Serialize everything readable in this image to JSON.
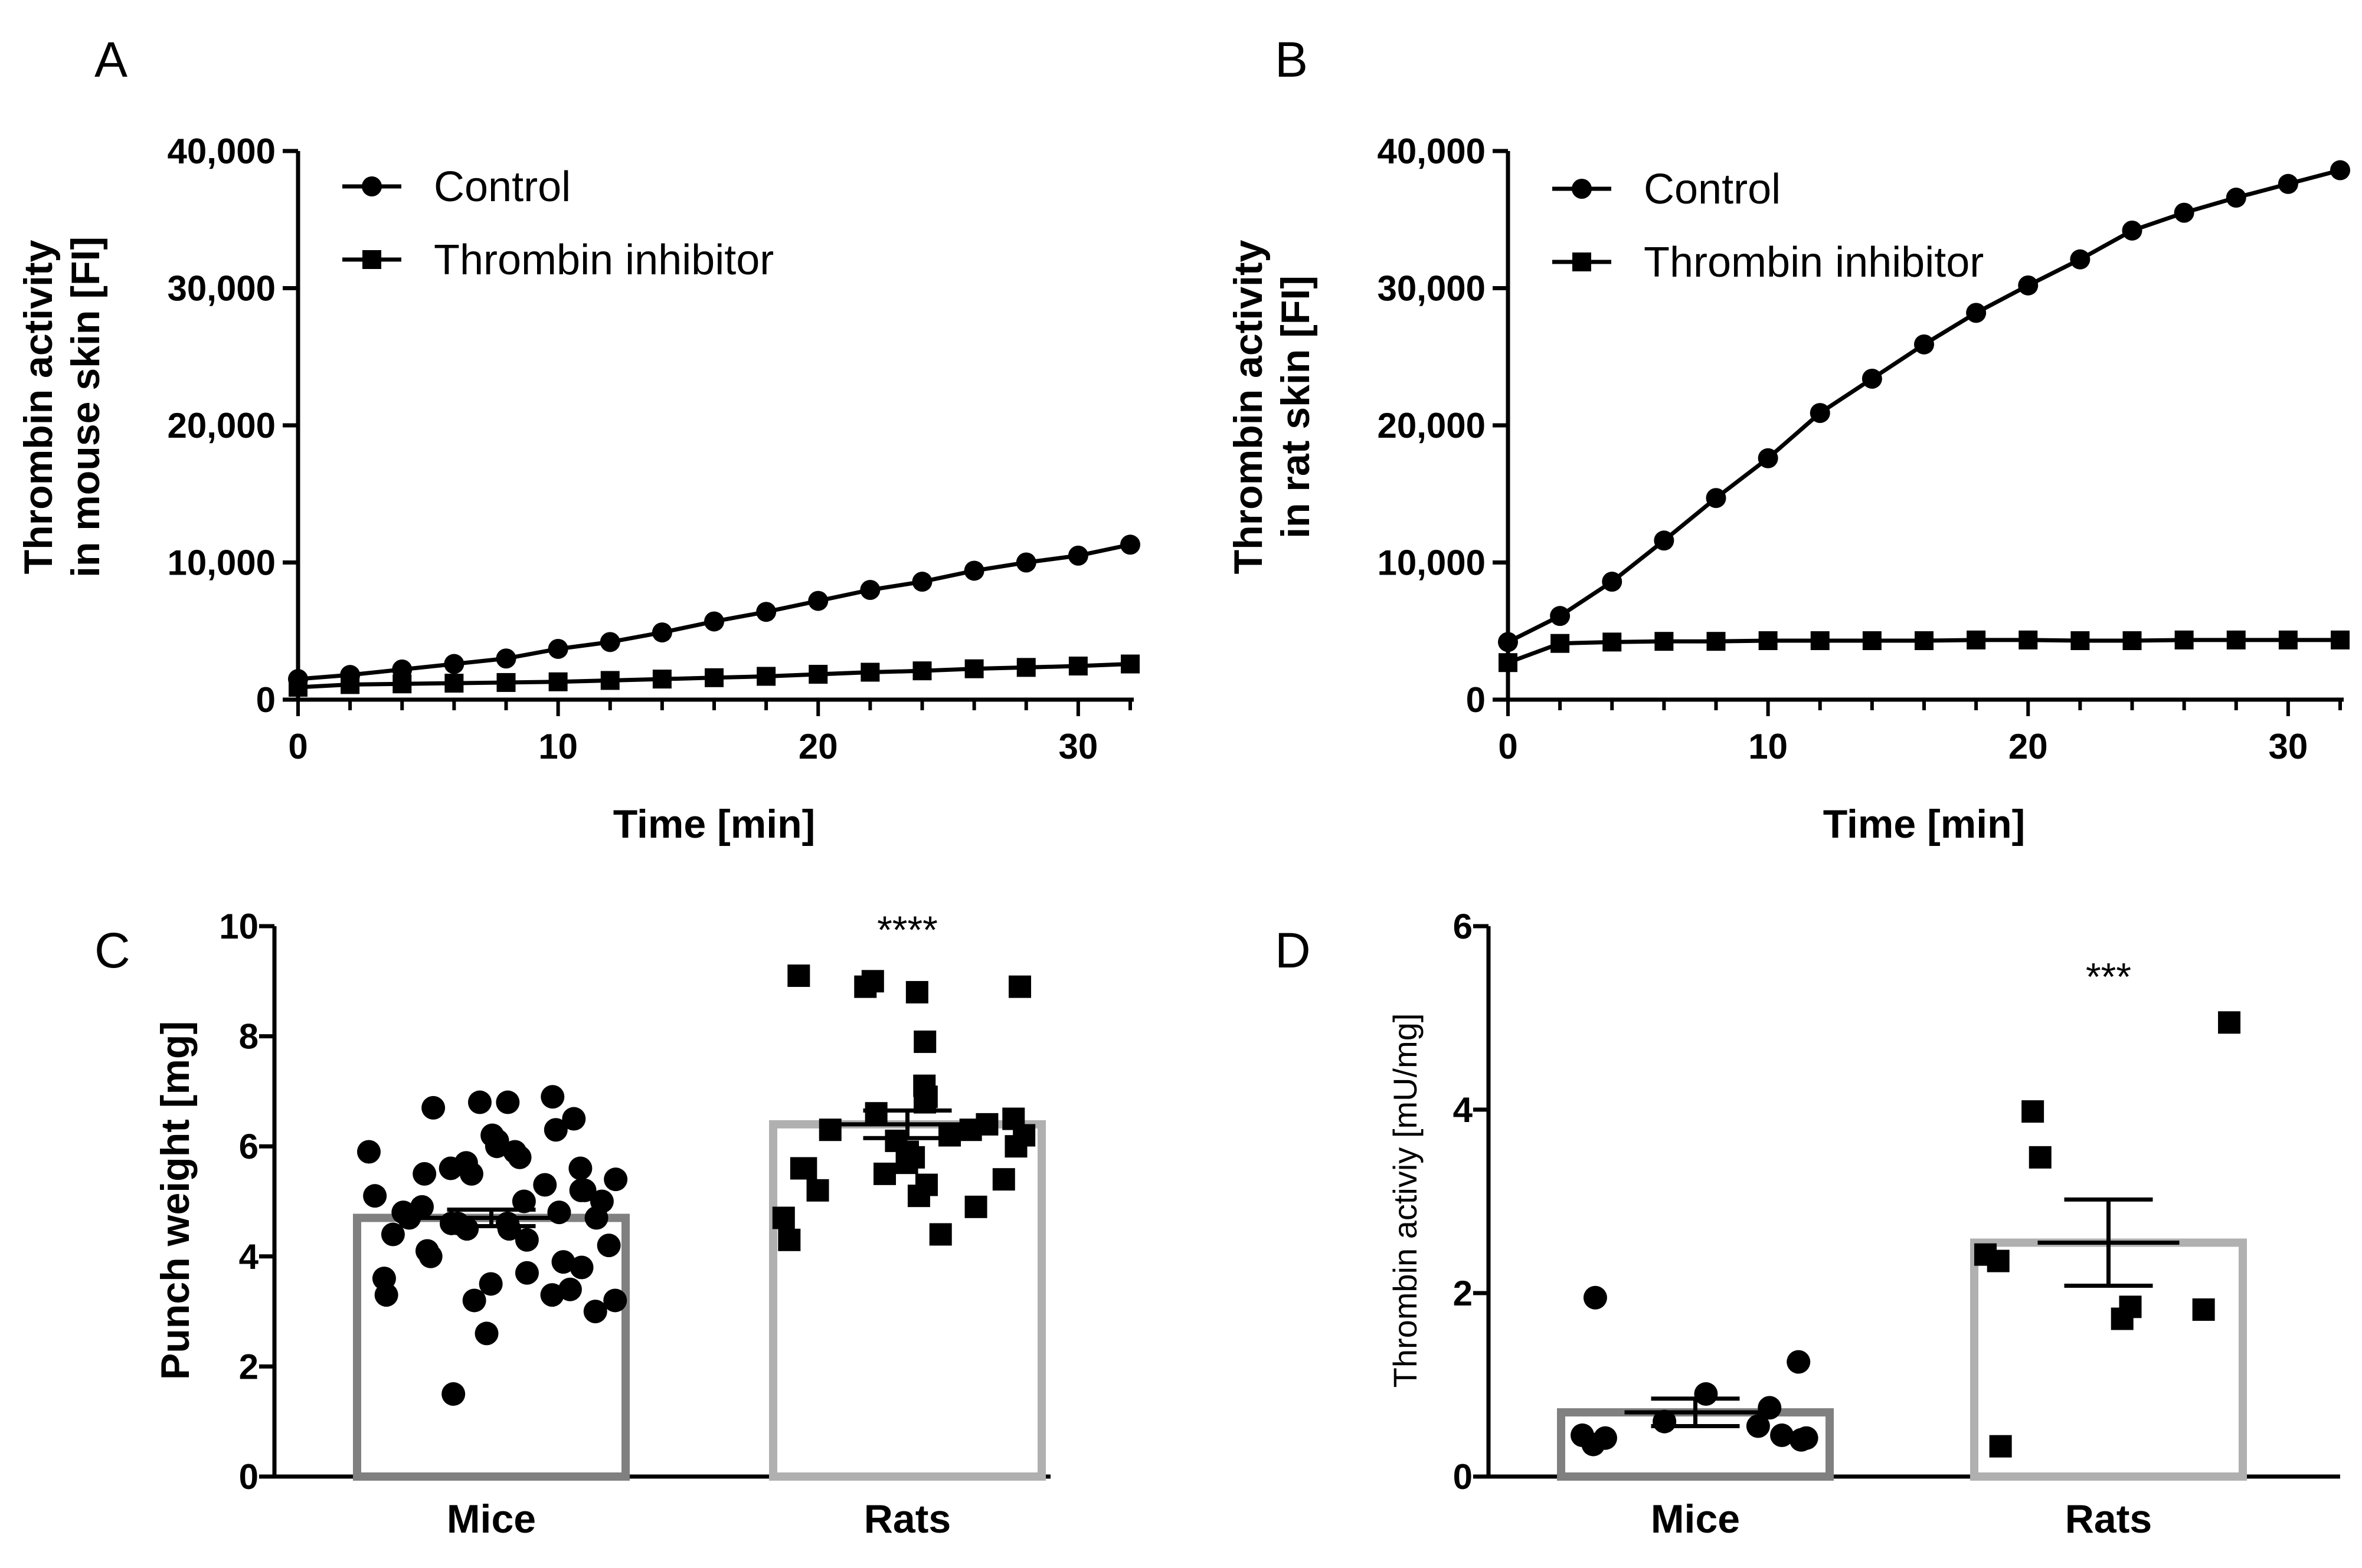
{
  "chart_data": [
    {
      "panel": "A",
      "type": "line",
      "ylabel": [
        "Thrombin activity",
        "in mouse skin [FI]"
      ],
      "xlabel": "Time [min]",
      "xlim": [
        0,
        32
      ],
      "ylim": [
        0,
        40000
      ],
      "xticks": [
        0,
        10,
        20,
        30
      ],
      "yticks": [
        0,
        10000,
        20000,
        30000,
        40000
      ],
      "ytick_labels": [
        "0",
        "10,000",
        "20,000",
        "30,000",
        "40,000"
      ],
      "legend_position": "top-left",
      "x": [
        0,
        2,
        4,
        6,
        8,
        10,
        12,
        14,
        16,
        18,
        20,
        22,
        24,
        26,
        28,
        30,
        32
      ],
      "series": [
        {
          "name": "Control",
          "marker": "circle",
          "values": [
            1500,
            1800,
            2200,
            2600,
            3000,
            3700,
            4200,
            4900,
            5700,
            6400,
            7200,
            8000,
            8600,
            9400,
            10000,
            10500,
            11300
          ]
        },
        {
          "name": "Thrombin inhibitor",
          "marker": "square",
          "values": [
            900,
            1100,
            1150,
            1200,
            1250,
            1300,
            1400,
            1500,
            1600,
            1700,
            1850,
            2000,
            2100,
            2250,
            2350,
            2450,
            2600
          ]
        }
      ]
    },
    {
      "panel": "B",
      "type": "line",
      "ylabel": [
        "Thrombin activity",
        "in rat skin [FI]"
      ],
      "xlabel": "Time [min]",
      "xlim": [
        0,
        32
      ],
      "ylim": [
        0,
        40000
      ],
      "xticks": [
        0,
        10,
        20,
        30
      ],
      "yticks": [
        0,
        10000,
        20000,
        30000,
        40000
      ],
      "ytick_labels": [
        "0",
        "10,000",
        "20,000",
        "30,000",
        "40,000"
      ],
      "legend_position": "top-left",
      "x": [
        0,
        2,
        4,
        6,
        8,
        10,
        12,
        14,
        16,
        18,
        20,
        22,
        24,
        26,
        28,
        30,
        32
      ],
      "series": [
        {
          "name": "Control",
          "marker": "circle",
          "values": [
            4200,
            6100,
            8600,
            11600,
            14700,
            17600,
            20900,
            23400,
            25900,
            28200,
            30200,
            32100,
            34200,
            35500,
            36600,
            37600,
            38600
          ]
        },
        {
          "name": "Thrombin inhibitor",
          "marker": "square",
          "values": [
            2700,
            4100,
            4200,
            4250,
            4250,
            4300,
            4300,
            4300,
            4300,
            4350,
            4350,
            4300,
            4300,
            4350,
            4350,
            4350,
            4350
          ]
        }
      ]
    },
    {
      "panel": "C",
      "type": "bar",
      "ylabel": "Punch weight [mg]",
      "categories": [
        "Mice",
        "Rats"
      ],
      "ylim": [
        0,
        10
      ],
      "yticks": [
        0,
        2,
        4,
        6,
        8,
        10
      ],
      "means": [
        4.7,
        6.4
      ],
      "sem": [
        0.15,
        0.25
      ],
      "bar_colors": [
        "#808080",
        "#b0b0b0"
      ],
      "significance": [
        "",
        "****"
      ],
      "points": [
        {
          "marker": "circle",
          "values": [
            6.9,
            6.8,
            6.8,
            6.7,
            6.5,
            6.3,
            6.2,
            6.1,
            6.0,
            5.9,
            5.9,
            5.8,
            5.7,
            5.6,
            5.6,
            5.5,
            5.5,
            5.4,
            5.3,
            5.2,
            5.2,
            5.1,
            5.0,
            5.0,
            4.9,
            4.8,
            4.8,
            4.7,
            4.7,
            4.6,
            4.6,
            4.6,
            4.5,
            4.5,
            4.4,
            4.3,
            4.2,
            4.1,
            4.0,
            3.9,
            3.8,
            3.7,
            3.6,
            3.5,
            3.4,
            3.3,
            3.3,
            3.2,
            3.2,
            3.0,
            2.6,
            1.5
          ]
        },
        {
          "marker": "square",
          "values": [
            9.1,
            9.0,
            8.9,
            8.9,
            8.8,
            7.9,
            7.1,
            6.9,
            6.8,
            6.6,
            6.5,
            6.4,
            6.3,
            6.3,
            6.2,
            6.2,
            6.1,
            6.0,
            5.9,
            5.8,
            5.7,
            5.6,
            5.6,
            5.5,
            5.4,
            5.3,
            5.2,
            5.1,
            4.9,
            4.7,
            4.4,
            4.3
          ]
        }
      ]
    },
    {
      "panel": "D",
      "type": "bar",
      "ylabel": "Thrombin activiy [mU/mg]",
      "categories": [
        "Mice",
        "Rats"
      ],
      "ylim": [
        0,
        6
      ],
      "yticks": [
        0,
        2,
        4,
        6
      ],
      "means": [
        0.7,
        2.55
      ],
      "sem": [
        0.15,
        0.47
      ],
      "bar_colors": [
        "#808080",
        "#b0b0b0"
      ],
      "significance": [
        "",
        "***"
      ],
      "points": [
        {
          "marker": "circle",
          "values": [
            1.95,
            1.25,
            0.9,
            0.75,
            0.6,
            0.55,
            0.45,
            0.45,
            0.42,
            0.42,
            0.4,
            0.35
          ]
        },
        {
          "marker": "square",
          "values": [
            4.95,
            3.98,
            3.48,
            2.42,
            2.35,
            1.85,
            1.82,
            1.72,
            0.33
          ]
        }
      ]
    }
  ]
}
